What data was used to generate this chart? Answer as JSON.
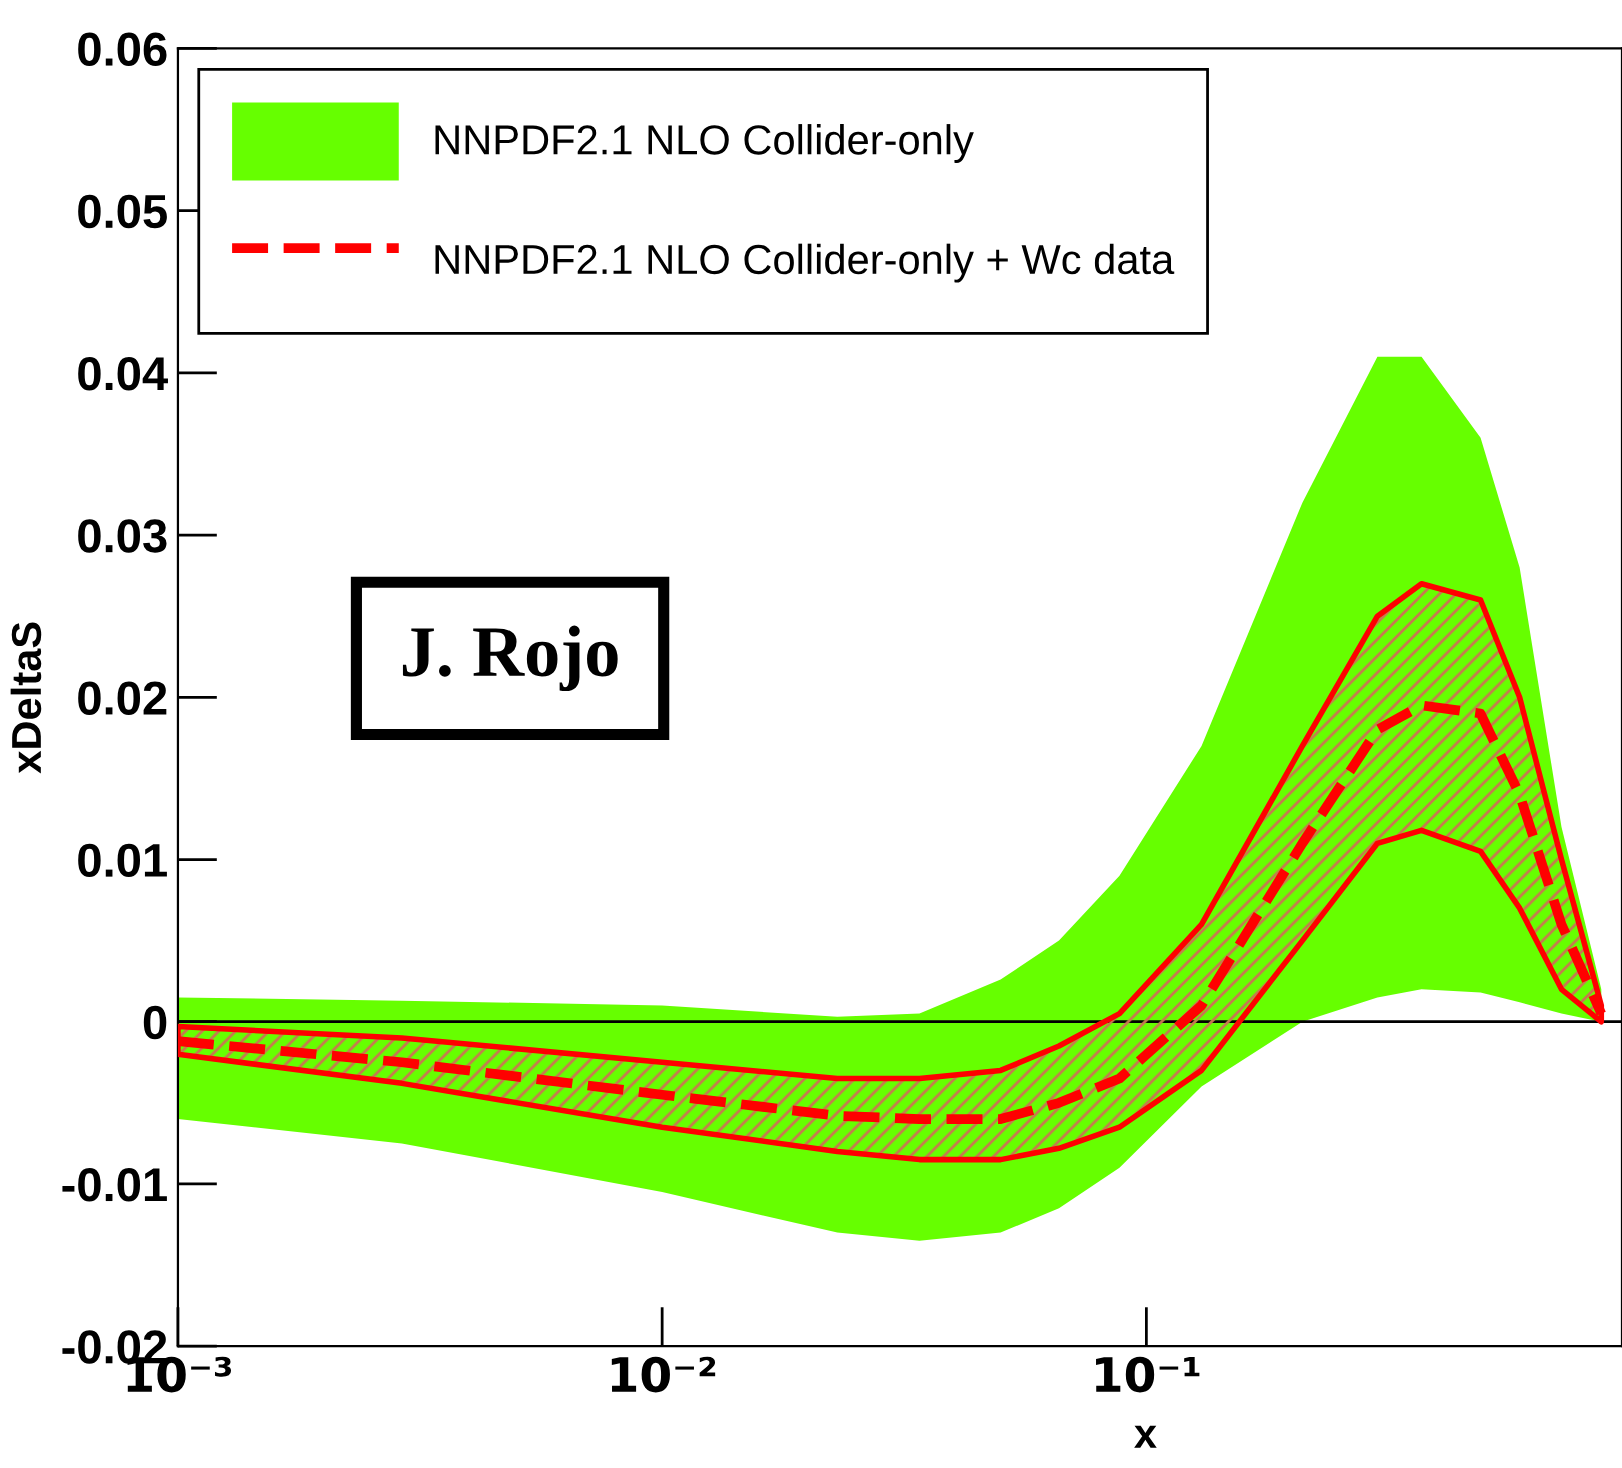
{
  "chart_data": {
    "type": "line",
    "xlabel": "x",
    "ylabel": "xDeltaS",
    "log": "x",
    "x": [
      0.001,
      0.0029,
      0.01,
      0.023,
      0.034,
      0.05,
      0.066,
      0.088,
      0.13,
      0.21,
      0.3,
      0.37,
      0.49,
      0.59,
      0.72,
      0.87
    ],
    "series": [
      {
        "name": "NNPDF2.1 NLO Collider-only",
        "type": "area",
        "color": "#66ff00",
        "values": [
          null,
          null,
          null,
          null,
          null,
          null,
          null,
          null,
          null,
          null,
          null,
          null,
          null,
          null,
          null,
          null
        ],
        "lower": [
          -0.006,
          -0.0075,
          -0.0105,
          -0.013,
          -0.0135,
          -0.013,
          -0.0115,
          -0.009,
          -0.004,
          0,
          0.0015,
          0.002,
          0.0018,
          0.0012,
          0.0005,
          0
        ],
        "upper": [
          0.0015,
          0.0013,
          0.001,
          0.0003,
          0.0005,
          0.0026,
          0.005,
          0.009,
          0.017,
          0.032,
          0.041,
          0.041,
          0.036,
          0.028,
          0.012,
          0.002
        ]
      },
      {
        "name": "NNPDF2.1 NLO Collider-only + Wc data",
        "line_style": "dashed",
        "color": "#ff0000",
        "values": [
          -0.0012,
          -0.0025,
          -0.0045,
          -0.0058,
          -0.006,
          -0.006,
          -0.005,
          -0.0035,
          0.001,
          0.011,
          0.018,
          0.0195,
          0.019,
          0.014,
          0.006,
          0.0005
        ],
        "lower": [
          -0.002,
          -0.0038,
          -0.0065,
          -0.008,
          -0.0085,
          -0.0085,
          -0.0078,
          -0.0065,
          -0.003,
          0.005,
          0.011,
          0.0118,
          0.0105,
          0.007,
          0.002,
          0
        ],
        "upper": [
          -0.0003,
          -0.001,
          -0.0025,
          -0.0035,
          -0.0035,
          -0.003,
          -0.0015,
          0.0005,
          0.006,
          0.017,
          0.025,
          0.027,
          0.026,
          0.02,
          0.01,
          0.001
        ]
      }
    ],
    "xlim": [
      0.001,
      0.96
    ],
    "ylim": [
      -0.02,
      0.06
    ],
    "xticks": [
      {
        "value": 0.001,
        "label": "10⁻³"
      },
      {
        "value": 0.01,
        "label": "10⁻²"
      },
      {
        "value": 0.1,
        "label": "10⁻¹"
      }
    ],
    "yticks": [
      -0.02,
      -0.01,
      0,
      0.01,
      0.02,
      0.03,
      0.04,
      0.05,
      0.06
    ],
    "ref_lines": [
      {
        "axis": "y",
        "value": 0,
        "color": "#000000"
      }
    ],
    "annotations": [
      "J. Rojo"
    ],
    "legend": "top left",
    "grid": false
  }
}
